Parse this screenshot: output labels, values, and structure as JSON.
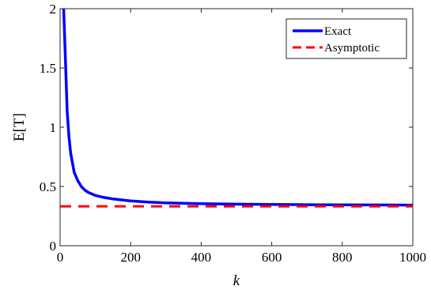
{
  "chart_data": {
    "type": "line",
    "xlabel": "k",
    "ylabel": "E[T]",
    "xlim": [
      0,
      1000
    ],
    "ylim": [
      0,
      2
    ],
    "xticks": [
      0,
      200,
      400,
      600,
      800,
      1000
    ],
    "xtick_labels": [
      "0",
      "200",
      "400",
      "600",
      "800",
      "1000"
    ],
    "yticks": [
      0,
      0.5,
      1,
      1.5,
      2
    ],
    "ytick_labels": [
      "0",
      "0.5",
      "1",
      "1.5",
      "2"
    ],
    "grid": false,
    "legend_position": "top-right",
    "series": [
      {
        "name": "Exact",
        "color": "#0000ff",
        "style": "solid",
        "x": [
          10,
          15,
          20,
          25,
          30,
          40,
          50,
          60,
          70,
          80,
          100,
          120,
          150,
          200,
          250,
          300,
          400,
          500,
          600,
          700,
          800,
          900,
          1000
        ],
        "y": [
          2.0,
          1.58,
          1.14,
          0.92,
          0.78,
          0.62,
          0.55,
          0.5,
          0.47,
          0.45,
          0.425,
          0.41,
          0.395,
          0.378,
          0.368,
          0.362,
          0.355,
          0.351,
          0.348,
          0.346,
          0.345,
          0.344,
          0.343
        ]
      },
      {
        "name": "Asymptotic",
        "color": "#ff0000",
        "style": "dashed",
        "x": [
          0,
          1000
        ],
        "y": [
          0.333,
          0.333
        ]
      }
    ]
  }
}
